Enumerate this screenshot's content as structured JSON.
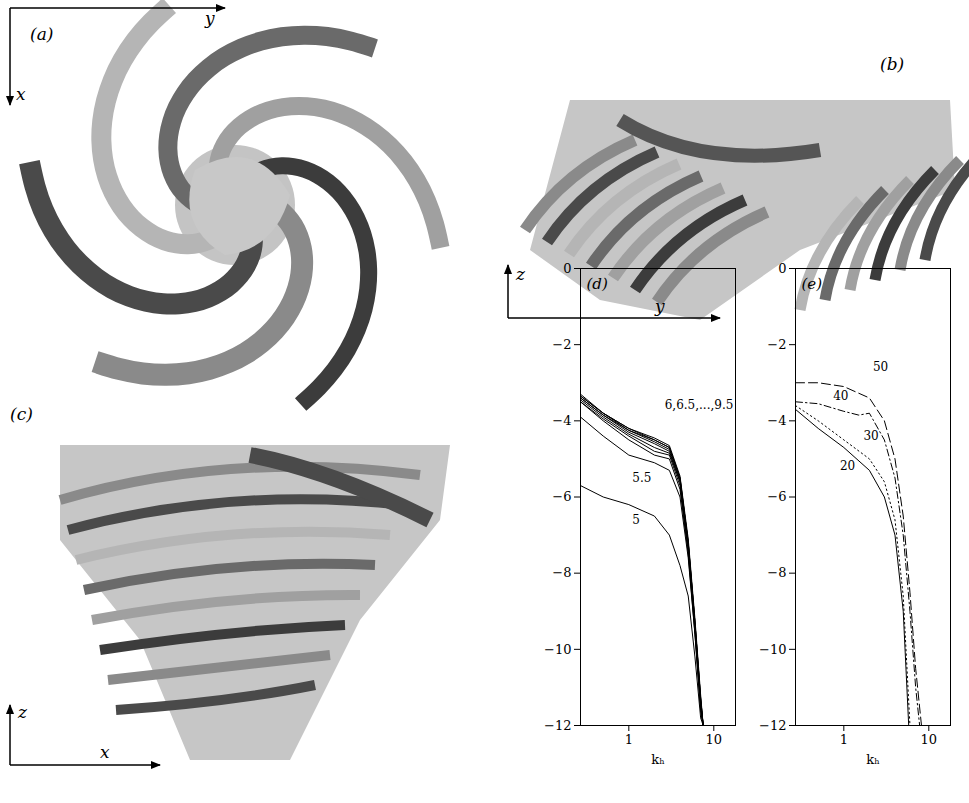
{
  "panels_3d": [
    {
      "label": "(a)",
      "axes": [
        "y",
        "x"
      ]
    },
    {
      "label": "(b)",
      "axes": [
        "z",
        "y"
      ]
    },
    {
      "label": "(c)",
      "axes": [
        "z",
        "x"
      ]
    }
  ],
  "chart_data": [
    {
      "type": "line",
      "title": "(d)",
      "xlabel": "kₕ",
      "log": "x",
      "xlim": [
        0.27,
        18
      ],
      "xticks": [
        1,
        10
      ],
      "ylim": [
        -12,
        0
      ],
      "yticks": [
        0,
        -2,
        -4,
        -6,
        -8,
        -10,
        -12
      ],
      "series": [
        {
          "color": "black",
          "line_style": "solid",
          "x": [
            0.27,
            0.5,
            1,
            2,
            3,
            4,
            5,
            6,
            7,
            7.5
          ],
          "values": [
            -5.7,
            -6.0,
            -6.2,
            -6.5,
            -7.0,
            -7.8,
            -8.6,
            -10.2,
            -11.8,
            -12
          ]
        },
        {
          "color": "black",
          "line_style": "solid",
          "x": [
            0.27,
            0.5,
            1,
            2,
            3,
            4,
            5,
            6,
            7,
            7.5
          ],
          "values": [
            -3.9,
            -4.4,
            -4.9,
            -5.1,
            -5.3,
            -6.0,
            -7.6,
            -9.6,
            -11.6,
            -12
          ]
        },
        {
          "color": "black",
          "line_style": "solid",
          "x": [
            0.27,
            0.5,
            1,
            2,
            3,
            4,
            5,
            6,
            7,
            7.5
          ],
          "values": [
            -3.5,
            -4.0,
            -4.5,
            -4.9,
            -5.0,
            -5.8,
            -7.5,
            -9.6,
            -11.6,
            -12
          ]
        },
        {
          "color": "black",
          "line_style": "solid",
          "x": [
            0.27,
            0.5,
            1,
            2,
            3,
            4,
            5,
            6,
            7,
            7.5
          ],
          "values": [
            -3.5,
            -3.95,
            -4.4,
            -4.8,
            -4.9,
            -5.7,
            -7.4,
            -9.5,
            -11.5,
            -12
          ]
        },
        {
          "color": "black",
          "line_style": "solid",
          "x": [
            0.27,
            0.5,
            1,
            2,
            3,
            4,
            5,
            6,
            7,
            7.5
          ],
          "values": [
            -3.45,
            -3.9,
            -4.35,
            -4.7,
            -4.85,
            -5.6,
            -7.3,
            -9.4,
            -11.4,
            -12
          ]
        },
        {
          "color": "black",
          "line_style": "solid",
          "x": [
            0.27,
            0.5,
            1,
            2,
            3,
            4,
            5,
            6,
            7,
            7.5
          ],
          "values": [
            -3.4,
            -3.85,
            -4.3,
            -4.6,
            -4.8,
            -5.6,
            -7.3,
            -9.4,
            -11.4,
            -12
          ]
        },
        {
          "color": "black",
          "line_style": "solid",
          "x": [
            0.27,
            0.5,
            1,
            2,
            3,
            4,
            5,
            6,
            7,
            7.5
          ],
          "values": [
            -3.4,
            -3.85,
            -4.25,
            -4.55,
            -4.75,
            -5.55,
            -7.2,
            -9.3,
            -11.3,
            -12
          ]
        },
        {
          "color": "black",
          "line_style": "solid",
          "x": [
            0.27,
            0.5,
            1,
            2,
            3,
            4,
            5,
            6,
            7,
            7.5
          ],
          "values": [
            -3.35,
            -3.8,
            -4.25,
            -4.5,
            -4.7,
            -5.5,
            -7.2,
            -9.3,
            -11.3,
            -12
          ]
        },
        {
          "color": "black",
          "line_style": "solid",
          "x": [
            0.27,
            0.5,
            1,
            2,
            3,
            4,
            5,
            6,
            7,
            7.5
          ],
          "values": [
            -3.35,
            -3.8,
            -4.2,
            -4.5,
            -4.7,
            -5.5,
            -7.2,
            -9.3,
            -11.3,
            -12
          ]
        },
        {
          "color": "black",
          "line_style": "solid",
          "x": [
            0.27,
            0.5,
            1,
            2,
            3,
            4,
            5,
            6,
            7,
            7.5
          ],
          "values": [
            -3.3,
            -3.8,
            -4.2,
            -4.45,
            -4.65,
            -5.45,
            -7.1,
            -9.2,
            -11.2,
            -12
          ]
        }
      ],
      "annotations": [
        {
          "text": "6,6.5,...,9.5",
          "x": 17,
          "y": -3.6
        },
        {
          "text": "5.5",
          "x": 1.1,
          "y": -5.5
        },
        {
          "text": "5",
          "x": 1.1,
          "y": -6.6
        }
      ]
    },
    {
      "type": "line",
      "title": "(e)",
      "xlabel": "kₕ",
      "log": "x",
      "xlim": [
        0.27,
        18
      ],
      "xticks": [
        1,
        10
      ],
      "ylim": [
        -12,
        0
      ],
      "yticks": [
        0,
        -2,
        -4,
        -6,
        -8,
        -10,
        -12
      ],
      "series": [
        {
          "color": "black",
          "line_style": "solid",
          "x": [
            0.27,
            0.5,
            1,
            2,
            3,
            4,
            5,
            5.8
          ],
          "values": [
            -3.7,
            -4.2,
            -4.7,
            -5.3,
            -6.0,
            -7.0,
            -9.0,
            -12
          ]
        },
        {
          "color": "black",
          "line_style": "dotted",
          "x": [
            0.27,
            0.5,
            1,
            2,
            3,
            4,
            5,
            6
          ],
          "values": [
            -3.6,
            -4.0,
            -4.5,
            -5.0,
            -5.6,
            -6.6,
            -8.6,
            -12
          ]
        },
        {
          "color": "black",
          "line_style": "dashdot",
          "x": [
            0.27,
            0.5,
            1,
            1.5,
            2,
            3,
            4,
            5,
            6,
            7,
            7.8
          ],
          "values": [
            -3.5,
            -3.55,
            -3.75,
            -3.85,
            -3.8,
            -4.5,
            -5.5,
            -7.0,
            -9.0,
            -11,
            -12
          ]
        },
        {
          "color": "black",
          "line_style": "dashed",
          "x": [
            0.27,
            0.5,
            1,
            2,
            3,
            4,
            5,
            6,
            7,
            8.2
          ],
          "values": [
            -3.0,
            -3.0,
            -3.1,
            -3.4,
            -4.0,
            -5.0,
            -6.5,
            -8.5,
            -10.5,
            -12
          ]
        }
      ],
      "annotations": [
        {
          "text": "50",
          "x": 2.2,
          "y": -2.6
        },
        {
          "text": "40",
          "x": 0.75,
          "y": -3.35
        },
        {
          "text": "30",
          "x": 1.7,
          "y": -4.4
        },
        {
          "text": "20",
          "x": 0.9,
          "y": -5.2
        }
      ]
    }
  ]
}
